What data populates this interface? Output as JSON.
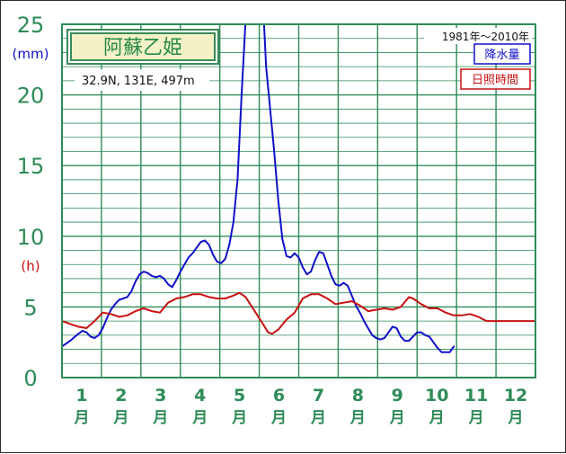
{
  "chart_data": {
    "type": "line",
    "title": "阿蘇乙姫",
    "location": "32.9N,  131E,  497m",
    "period": "1981年〜2010年",
    "y_unit_precip": "(mm)",
    "y_unit_sun": "(h)",
    "ylim": [
      0,
      25
    ],
    "yticks": [
      "0",
      "5",
      "10",
      "15",
      "20",
      "25"
    ],
    "xlim": [
      1,
      12.6
    ],
    "months": [
      "1",
      "2",
      "3",
      "4",
      "5",
      "6",
      "7",
      "8",
      "9",
      "10",
      "11",
      "12"
    ],
    "month_suffix": "月",
    "grid": true,
    "legend_position": "top-right",
    "series": [
      {
        "name": "降水量",
        "color": "#1010c8",
        "points": [
          [
            1.0,
            2.2
          ],
          [
            1.2,
            2.6
          ],
          [
            1.4,
            3.1
          ],
          [
            1.5,
            3.3
          ],
          [
            1.6,
            3.2
          ],
          [
            1.7,
            2.9
          ],
          [
            1.8,
            2.8
          ],
          [
            1.9,
            3.0
          ],
          [
            2.0,
            3.5
          ],
          [
            2.1,
            4.2
          ],
          [
            2.2,
            4.8
          ],
          [
            2.3,
            5.2
          ],
          [
            2.4,
            5.5
          ],
          [
            2.5,
            5.6
          ],
          [
            2.6,
            5.7
          ],
          [
            2.7,
            6.1
          ],
          [
            2.8,
            6.8
          ],
          [
            2.9,
            7.3
          ],
          [
            3.0,
            7.5
          ],
          [
            3.1,
            7.4
          ],
          [
            3.2,
            7.2
          ],
          [
            3.3,
            7.1
          ],
          [
            3.4,
            7.2
          ],
          [
            3.5,
            7.0
          ],
          [
            3.6,
            6.6
          ],
          [
            3.7,
            6.4
          ],
          [
            3.8,
            6.9
          ],
          [
            3.9,
            7.5
          ],
          [
            4.0,
            8.0
          ],
          [
            4.1,
            8.5
          ],
          [
            4.2,
            8.8
          ],
          [
            4.3,
            9.2
          ],
          [
            4.4,
            9.6
          ],
          [
            4.5,
            9.7
          ],
          [
            4.6,
            9.4
          ],
          [
            4.7,
            8.7
          ],
          [
            4.8,
            8.2
          ],
          [
            4.9,
            8.1
          ],
          [
            5.0,
            8.4
          ],
          [
            5.1,
            9.4
          ],
          [
            5.2,
            11.0
          ],
          [
            5.3,
            14.0
          ],
          [
            5.4,
            20.0
          ],
          [
            5.5,
            25.3
          ],
          [
            5.65,
            27.5
          ],
          [
            5.8,
            27.0
          ],
          [
            5.95,
            25.0
          ],
          [
            6.0,
            22.0
          ],
          [
            6.1,
            19.0
          ],
          [
            6.2,
            16.0
          ],
          [
            6.3,
            12.5
          ],
          [
            6.4,
            9.8
          ],
          [
            6.5,
            8.6
          ],
          [
            6.6,
            8.5
          ],
          [
            6.7,
            8.8
          ],
          [
            6.8,
            8.5
          ],
          [
            6.9,
            7.8
          ],
          [
            7.0,
            7.3
          ],
          [
            7.1,
            7.5
          ],
          [
            7.2,
            8.3
          ],
          [
            7.3,
            8.9
          ],
          [
            7.4,
            8.8
          ],
          [
            7.5,
            8.0
          ],
          [
            7.6,
            7.2
          ],
          [
            7.7,
            6.6
          ],
          [
            7.8,
            6.5
          ],
          [
            7.9,
            6.7
          ],
          [
            8.0,
            6.5
          ],
          [
            8.1,
            5.8
          ],
          [
            8.2,
            5.1
          ],
          [
            8.3,
            4.6
          ],
          [
            8.4,
            4.0
          ],
          [
            8.5,
            3.5
          ],
          [
            8.6,
            3.0
          ],
          [
            8.7,
            2.8
          ],
          [
            8.8,
            2.7
          ],
          [
            8.9,
            2.8
          ],
          [
            9.0,
            3.2
          ],
          [
            9.1,
            3.6
          ],
          [
            9.2,
            3.5
          ],
          [
            9.3,
            2.9
          ],
          [
            9.4,
            2.6
          ],
          [
            9.5,
            2.6
          ],
          [
            9.6,
            2.9
          ],
          [
            9.7,
            3.2
          ],
          [
            9.8,
            3.2
          ],
          [
            9.9,
            3.0
          ],
          [
            10.0,
            2.9
          ],
          [
            10.1,
            2.5
          ],
          [
            10.2,
            2.1
          ],
          [
            10.3,
            1.8
          ],
          [
            10.4,
            1.8
          ],
          [
            10.5,
            1.8
          ],
          [
            10.6,
            2.2
          ]
        ]
      },
      {
        "name": "日照時間",
        "color": "#c81010",
        "points": [
          [
            1.0,
            4.0
          ],
          [
            1.2,
            3.8
          ],
          [
            1.4,
            3.6
          ],
          [
            1.6,
            3.5
          ],
          [
            1.8,
            4.0
          ],
          [
            2.0,
            4.6
          ],
          [
            2.2,
            4.5
          ],
          [
            2.4,
            4.3
          ],
          [
            2.6,
            4.4
          ],
          [
            2.8,
            4.7
          ],
          [
            3.0,
            4.9
          ],
          [
            3.2,
            4.7
          ],
          [
            3.4,
            4.6
          ],
          [
            3.6,
            5.3
          ],
          [
            3.8,
            5.6
          ],
          [
            4.0,
            5.7
          ],
          [
            4.2,
            5.9
          ],
          [
            4.4,
            5.9
          ],
          [
            4.6,
            5.7
          ],
          [
            4.8,
            5.6
          ],
          [
            5.0,
            5.6
          ],
          [
            5.2,
            5.8
          ],
          [
            5.35,
            6.0
          ],
          [
            5.5,
            5.7
          ],
          [
            5.7,
            4.8
          ],
          [
            5.9,
            3.9
          ],
          [
            6.05,
            3.2
          ],
          [
            6.15,
            3.1
          ],
          [
            6.3,
            3.4
          ],
          [
            6.5,
            4.1
          ],
          [
            6.7,
            4.6
          ],
          [
            6.9,
            5.6
          ],
          [
            7.1,
            5.9
          ],
          [
            7.3,
            5.9
          ],
          [
            7.5,
            5.6
          ],
          [
            7.7,
            5.2
          ],
          [
            7.9,
            5.3
          ],
          [
            8.1,
            5.4
          ],
          [
            8.3,
            5.1
          ],
          [
            8.5,
            4.7
          ],
          [
            8.7,
            4.8
          ],
          [
            8.9,
            4.9
          ],
          [
            9.1,
            4.8
          ],
          [
            9.3,
            5.0
          ],
          [
            9.5,
            5.7
          ],
          [
            9.6,
            5.6
          ],
          [
            9.8,
            5.2
          ],
          [
            10.0,
            4.9
          ],
          [
            10.2,
            4.9
          ],
          [
            10.4,
            4.6
          ],
          [
            10.6,
            4.4
          ],
          [
            10.8,
            4.4
          ],
          [
            11.0,
            4.5
          ],
          [
            11.2,
            4.3
          ],
          [
            11.4,
            4.0
          ],
          [
            11.6,
            4.0
          ],
          [
            11.8,
            4.0
          ],
          [
            12.0,
            4.0
          ],
          [
            12.2,
            4.0
          ],
          [
            12.4,
            4.0
          ],
          [
            12.6,
            4.0
          ]
        ]
      }
    ]
  }
}
